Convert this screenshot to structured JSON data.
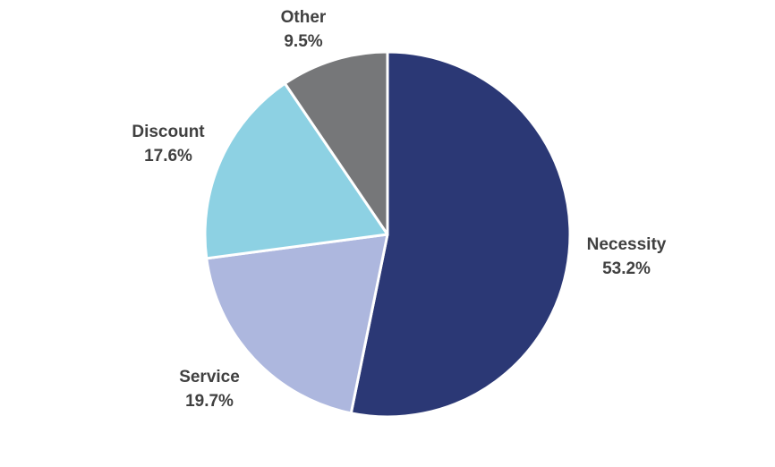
{
  "chart_data": {
    "type": "pie",
    "title": "",
    "start_angle_deg": 0,
    "direction": "clockwise",
    "slices": [
      {
        "name": "Necessity",
        "value": 53.2,
        "label": "53.2%",
        "color": "#2b3875"
      },
      {
        "name": "Service",
        "value": 19.7,
        "label": "19.7%",
        "color": "#adb7de"
      },
      {
        "name": "Discount",
        "value": 17.6,
        "label": "17.6%",
        "color": "#8dd1e3"
      },
      {
        "name": "Other",
        "value": 9.5,
        "label": "9.5%",
        "color": "#767779"
      }
    ]
  }
}
